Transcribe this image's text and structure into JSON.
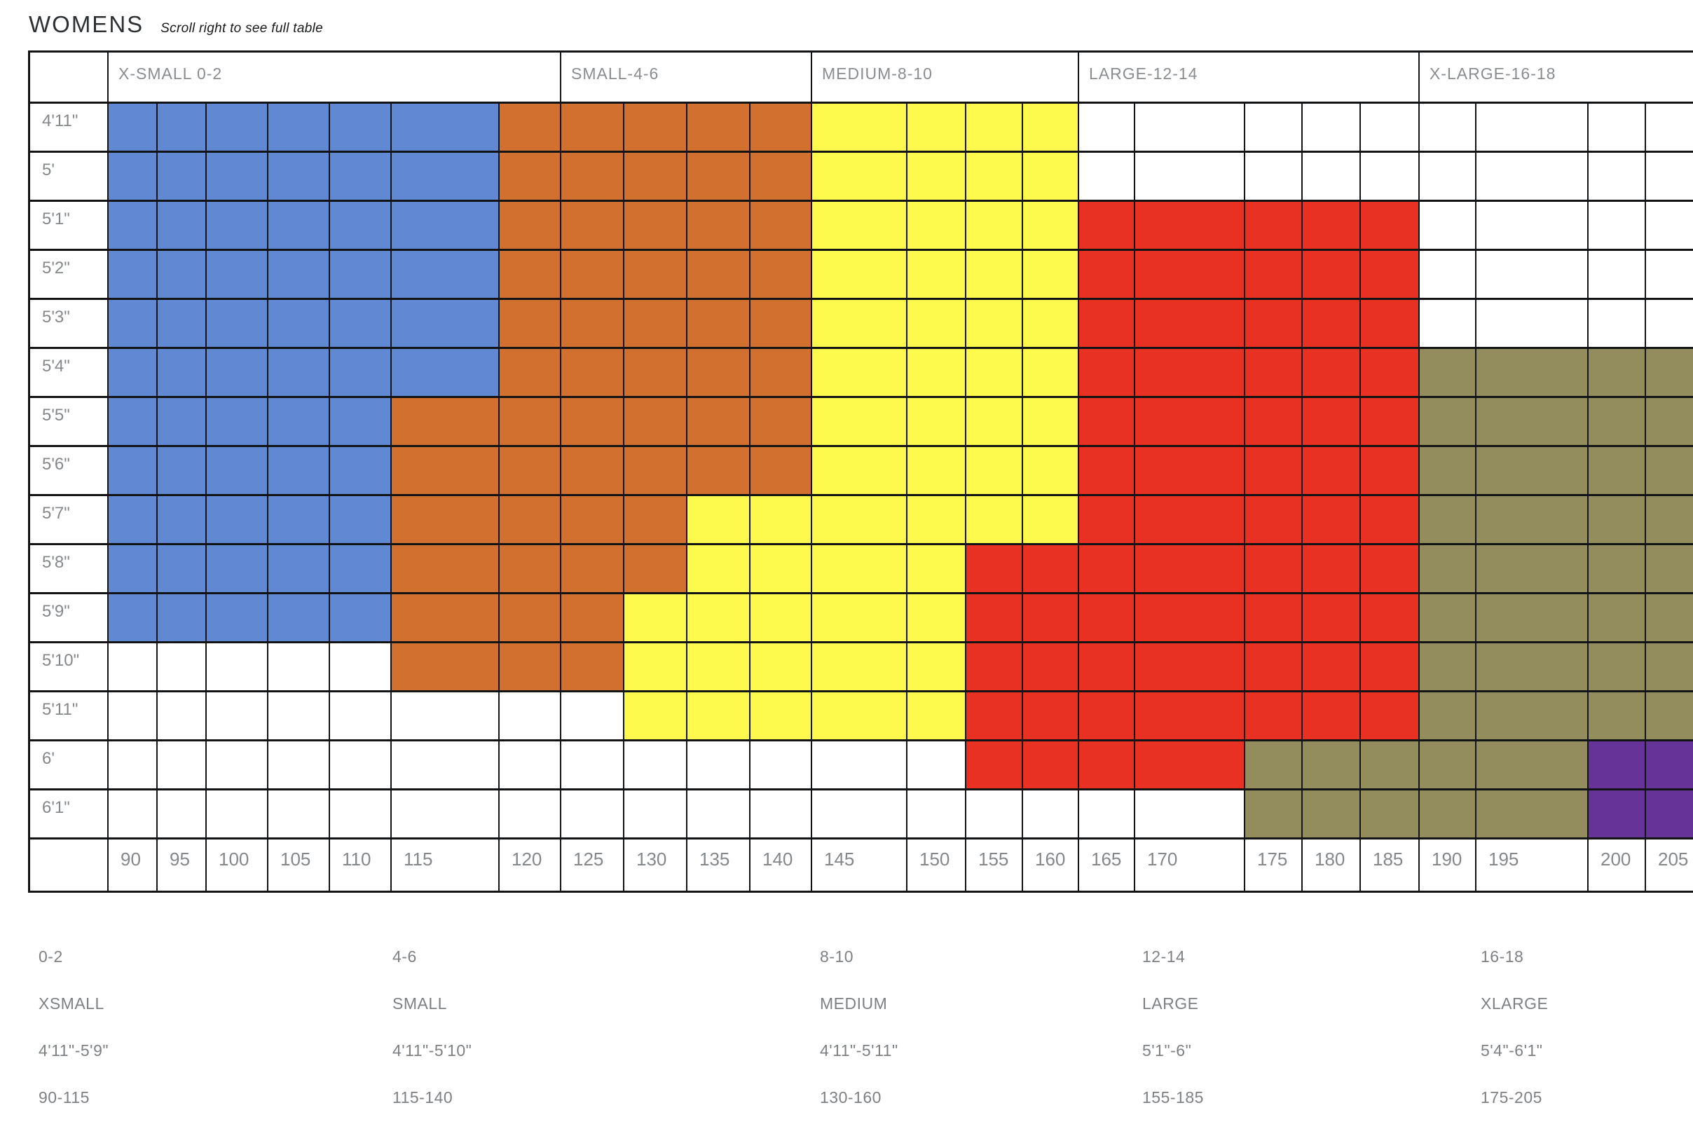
{
  "page": {
    "title": "WOMENS",
    "subtitle": "Scroll right to see full table"
  },
  "size_colors": {
    "xsmall": "#6189d3",
    "small": "#d2712f",
    "medium": "#fdfa4d",
    "large": "#e93123",
    "xlarge": "#938c5d",
    "xxlarge": "#663399"
  },
  "chart_data": {
    "type": "heatmap",
    "title": "WOMENS",
    "subtitle": "Scroll right to see full table",
    "column_groups": [
      {
        "label": "X-SMALL 0-2",
        "span": 7
      },
      {
        "label": "SMALL-4-6",
        "span": 4
      },
      {
        "label": "MEDIUM-8-10",
        "span": 4
      },
      {
        "label": "LARGE-12-14",
        "span": 5
      },
      {
        "label": "X-LARGE-16-18",
        "span": 4
      }
    ],
    "x_ticks_weights": [
      "90",
      "95",
      "100",
      "105",
      "110",
      "115",
      "120",
      "125",
      "130",
      "135",
      "140",
      "145",
      "150",
      "155",
      "160",
      "165",
      "170",
      "175",
      "180",
      "185",
      "190",
      "195",
      "200",
      "205"
    ],
    "rows": [
      {
        "height": "4'11\"",
        "cells": [
          "xsmall",
          "xsmall",
          "xsmall",
          "xsmall",
          "xsmall",
          "xsmall",
          "small",
          "small",
          "small",
          "small",
          "small",
          "medium",
          "medium",
          "medium",
          "medium",
          "",
          "",
          "",
          "",
          "",
          "",
          "",
          "",
          ""
        ]
      },
      {
        "height": "5'",
        "cells": [
          "xsmall",
          "xsmall",
          "xsmall",
          "xsmall",
          "xsmall",
          "xsmall",
          "small",
          "small",
          "small",
          "small",
          "small",
          "medium",
          "medium",
          "medium",
          "medium",
          "",
          "",
          "",
          "",
          "",
          "",
          "",
          "",
          ""
        ]
      },
      {
        "height": "5'1\"",
        "cells": [
          "xsmall",
          "xsmall",
          "xsmall",
          "xsmall",
          "xsmall",
          "xsmall",
          "small",
          "small",
          "small",
          "small",
          "small",
          "medium",
          "medium",
          "medium",
          "medium",
          "large",
          "large",
          "large",
          "large",
          "large",
          "",
          "",
          "",
          ""
        ]
      },
      {
        "height": "5'2\"",
        "cells": [
          "xsmall",
          "xsmall",
          "xsmall",
          "xsmall",
          "xsmall",
          "xsmall",
          "small",
          "small",
          "small",
          "small",
          "small",
          "medium",
          "medium",
          "medium",
          "medium",
          "large",
          "large",
          "large",
          "large",
          "large",
          "",
          "",
          "",
          ""
        ]
      },
      {
        "height": "5'3\"",
        "cells": [
          "xsmall",
          "xsmall",
          "xsmall",
          "xsmall",
          "xsmall",
          "xsmall",
          "small",
          "small",
          "small",
          "small",
          "small",
          "medium",
          "medium",
          "medium",
          "medium",
          "large",
          "large",
          "large",
          "large",
          "large",
          "",
          "",
          "",
          ""
        ]
      },
      {
        "height": "5'4\"",
        "cells": [
          "xsmall",
          "xsmall",
          "xsmall",
          "xsmall",
          "xsmall",
          "xsmall",
          "small",
          "small",
          "small",
          "small",
          "small",
          "medium",
          "medium",
          "medium",
          "medium",
          "large",
          "large",
          "large",
          "large",
          "large",
          "xlarge",
          "xlarge",
          "xlarge",
          "xlarge"
        ]
      },
      {
        "height": "5'5\"",
        "cells": [
          "xsmall",
          "xsmall",
          "xsmall",
          "xsmall",
          "xsmall",
          "small",
          "small",
          "small",
          "small",
          "small",
          "small",
          "medium",
          "medium",
          "medium",
          "medium",
          "large",
          "large",
          "large",
          "large",
          "large",
          "xlarge",
          "xlarge",
          "xlarge",
          "xlarge"
        ]
      },
      {
        "height": "5'6\"",
        "cells": [
          "xsmall",
          "xsmall",
          "xsmall",
          "xsmall",
          "xsmall",
          "small",
          "small",
          "small",
          "small",
          "small",
          "small",
          "medium",
          "medium",
          "medium",
          "medium",
          "large",
          "large",
          "large",
          "large",
          "large",
          "xlarge",
          "xlarge",
          "xlarge",
          "xlarge"
        ]
      },
      {
        "height": "5'7\"",
        "cells": [
          "xsmall",
          "xsmall",
          "xsmall",
          "xsmall",
          "xsmall",
          "small",
          "small",
          "small",
          "small",
          "medium",
          "medium",
          "medium",
          "medium",
          "medium",
          "medium",
          "large",
          "large",
          "large",
          "large",
          "large",
          "xlarge",
          "xlarge",
          "xlarge",
          "xlarge"
        ]
      },
      {
        "height": "5'8\"",
        "cells": [
          "xsmall",
          "xsmall",
          "xsmall",
          "xsmall",
          "xsmall",
          "small",
          "small",
          "small",
          "small",
          "medium",
          "medium",
          "medium",
          "medium",
          "large",
          "large",
          "large",
          "large",
          "large",
          "large",
          "large",
          "xlarge",
          "xlarge",
          "xlarge",
          "xlarge"
        ]
      },
      {
        "height": "5'9\"",
        "cells": [
          "xsmall",
          "xsmall",
          "xsmall",
          "xsmall",
          "xsmall",
          "small",
          "small",
          "small",
          "medium",
          "medium",
          "medium",
          "medium",
          "medium",
          "large",
          "large",
          "large",
          "large",
          "large",
          "large",
          "large",
          "xlarge",
          "xlarge",
          "xlarge",
          "xlarge"
        ]
      },
      {
        "height": "5'10\"",
        "cells": [
          "",
          "",
          "",
          "",
          "",
          "small",
          "small",
          "small",
          "medium",
          "medium",
          "medium",
          "medium",
          "medium",
          "large",
          "large",
          "large",
          "large",
          "large",
          "large",
          "large",
          "xlarge",
          "xlarge",
          "xlarge",
          "xlarge"
        ]
      },
      {
        "height": "5'11\"",
        "cells": [
          "",
          "",
          "",
          "",
          "",
          "",
          "",
          "",
          "medium",
          "medium",
          "medium",
          "medium",
          "medium",
          "large",
          "large",
          "large",
          "large",
          "large",
          "large",
          "large",
          "xlarge",
          "xlarge",
          "xlarge",
          "xlarge"
        ]
      },
      {
        "height": "6'",
        "cells": [
          "",
          "",
          "",
          "",
          "",
          "",
          "",
          "",
          "",
          "",
          "",
          "",
          "",
          "large",
          "large",
          "large",
          "large",
          "xlarge",
          "xlarge",
          "xlarge",
          "xlarge",
          "xlarge",
          "xxlarge",
          "xxlarge"
        ]
      },
      {
        "height": "6'1\"",
        "cells": [
          "",
          "",
          "",
          "",
          "",
          "",
          "",
          "",
          "",
          "",
          "",
          "",
          "",
          "",
          "",
          "",
          "",
          "xlarge",
          "xlarge",
          "xlarge",
          "xlarge",
          "xlarge",
          "xxlarge",
          "xxlarge"
        ]
      }
    ],
    "legend": [
      {
        "sizes": "0-2",
        "label": "XSMALL",
        "height_range": "4'11\"-5'9\"",
        "weight_range": "90-115"
      },
      {
        "sizes": "4-6",
        "label": "SMALL",
        "height_range": "4'11\"-5'10\"",
        "weight_range": "115-140"
      },
      {
        "sizes": "8-10",
        "label": "MEDIUM",
        "height_range": "4'11\"-5'11\"",
        "weight_range": "130-160"
      },
      {
        "sizes": "12-14",
        "label": "LARGE",
        "height_range": "5'1\"-6\"",
        "weight_range": "155-185"
      },
      {
        "sizes": "16-18",
        "label": "XLARGE",
        "height_range": "5'4\"-6'1\"",
        "weight_range": "175-205"
      }
    ]
  }
}
